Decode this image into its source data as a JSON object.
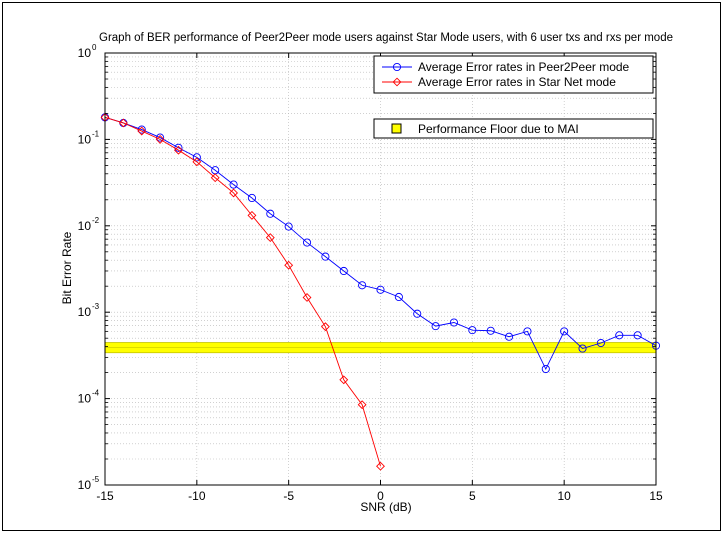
{
  "chart_data": {
    "type": "line",
    "title": "Graph of BER performance of Peer2Peer mode users against Star Mode users, with 6 user txs and rxs per mode",
    "xlabel": "SNR (dB)",
    "ylabel": "Bit Error Rate",
    "xlim": [
      -15,
      15
    ],
    "ylim": [
      1e-05,
      1
    ],
    "yscale": "log",
    "grid": true,
    "legend_position": "top-right",
    "x_ticks": [
      "-15",
      "-10",
      "-5",
      "0",
      "5",
      "10",
      "15"
    ],
    "y_ticks": [
      {
        "base": "10",
        "exp": "0"
      },
      {
        "base": "10",
        "exp": "-1"
      },
      {
        "base": "10",
        "exp": "-2"
      },
      {
        "base": "10",
        "exp": "-3"
      },
      {
        "base": "10",
        "exp": "-4"
      },
      {
        "base": "10",
        "exp": "-5"
      }
    ],
    "series": [
      {
        "name": "Average Error rates in Peer2Peer mode",
        "color": "#0000ff",
        "marker": "circle",
        "x": [
          -15,
          -14,
          -13,
          -12,
          -11,
          -10,
          -9,
          -8,
          -7,
          -6,
          -5,
          -4,
          -3,
          -2,
          -1,
          0,
          1,
          2,
          3,
          4,
          5,
          6,
          7,
          8,
          9,
          10,
          11,
          12,
          13,
          14,
          15
        ],
        "y": [
          0.18,
          0.155,
          0.13,
          0.105,
          0.08,
          0.062,
          0.044,
          0.03,
          0.021,
          0.0138,
          0.0098,
          0.0064,
          0.0044,
          0.003,
          0.00205,
          0.00182,
          0.0015,
          0.00096,
          0.00069,
          0.00076,
          0.00062,
          0.00061,
          0.00052,
          0.0006,
          0.00022,
          0.0006,
          0.00038,
          0.00044,
          0.00054,
          0.00054,
          0.00041
        ]
      },
      {
        "name": "Average Error rates in Star Net mode",
        "color": "#ff0000",
        "marker": "diamond",
        "x": [
          -15,
          -14,
          -13,
          -12,
          -11,
          -10,
          -9,
          -8,
          -7,
          -6,
          -5,
          -4,
          -3,
          -2,
          -1,
          0
        ],
        "y": [
          0.18,
          0.155,
          0.125,
          0.1,
          0.075,
          0.055,
          0.036,
          0.024,
          0.0132,
          0.0073,
          0.0035,
          0.00148,
          0.00068,
          0.000165,
          8.5e-05,
          1.65e-05
        ]
      }
    ],
    "floor": {
      "name": "Performance Floor due to MAI",
      "color": "#ffff00",
      "edge_color": "#c8c800",
      "value": 0.00039,
      "low": 0.00034,
      "high": 0.000445
    }
  }
}
